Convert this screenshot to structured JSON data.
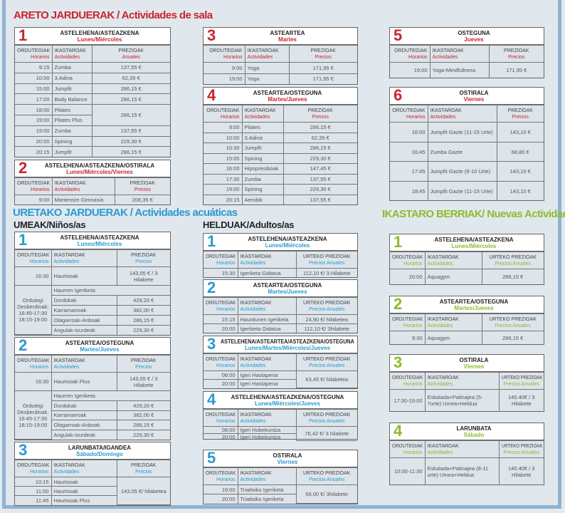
{
  "colors": {
    "red": "#c9252f",
    "blue": "#2b9ad0",
    "green": "#8dbb2d"
  },
  "sections": {
    "areto": {
      "title": "ARETO JARDUERAK / Actividades de sala"
    },
    "uretako": {
      "title": "URETAKO JARDUERAK / Actividades acuáticas",
      "umeak": "UMEAK/Niños/as",
      "helduak": "HELDUAK/Adultos/as"
    },
    "berriak": {
      "title": "IKASTARO BERRIAK/ Nuevas Actividades"
    }
  },
  "cards": [
    {
      "id": "a1",
      "theme": "red",
      "num": "1",
      "day_eu": "ASTELEHENA/ASTEAZKENA",
      "day_es": "Lunes/Miércoles",
      "headers": [
        [
          "ORDUTEGIAK",
          "Horarios"
        ],
        [
          "IKASTAROAK",
          "Actividades"
        ],
        [
          "PREZIOAK",
          "Anuales"
        ]
      ],
      "rows": [
        [
          "9:15",
          "Zumba",
          "137,55 €"
        ],
        [
          "10:00",
          "3.Adina",
          "62,35 €"
        ],
        [
          "15:00",
          "Jumpfit",
          "286,15 €"
        ],
        [
          "17:00",
          "Body Balance",
          "286,15 €"
        ],
        [
          "18:00",
          "Pilates",
          {
            "text": "286,15 €",
            "rowspan": 2
          }
        ],
        [
          "19:00",
          "Pilates Plus"
        ],
        [
          "19:00",
          "Zumba",
          "137,55 €"
        ],
        [
          "20:00",
          "Spining",
          "229,30 €"
        ],
        [
          "20:15",
          "Jumpfit",
          "286,15 €"
        ]
      ]
    },
    {
      "id": "a2",
      "theme": "red",
      "num": "2",
      "day_eu": "ASTELEHENA/ASTEAZKENA/OSTIRALA",
      "day_es": "Lunes/Miércoles/Viernes",
      "headers": [
        [
          "ORDUTEGIAK",
          "Horarios"
        ],
        [
          "IKASTAROAK",
          "Actividades"
        ],
        [
          "PREZIOAK",
          "Precios"
        ]
      ],
      "rows": [
        [
          "9:00",
          "Mantentze Gimnasia",
          "206,35 €"
        ]
      ]
    },
    {
      "id": "a3",
      "theme": "red",
      "num": "3",
      "day_eu": "ASTEARTEA",
      "day_es": "Martes",
      "headers": [
        [
          "ORDUTEGIAK",
          "Horarios"
        ],
        [
          "IKASTAROAK",
          "Actividades"
        ],
        [
          "PREZIOAK",
          "Precios"
        ]
      ],
      "rows": [
        [
          "9:00",
          "Yoga",
          "171,95 €"
        ],
        [
          "19:00",
          "Yoga",
          "171,95 €"
        ]
      ]
    },
    {
      "id": "a4",
      "theme": "red",
      "num": "4",
      "day_eu": "ASTEARTEA/OSTEGUNA",
      "day_es": "Martes/Jueves",
      "headers": [
        [
          "ORDUTEGIAK",
          "Horarios"
        ],
        [
          "IKASTAROAK",
          "Actividades"
        ],
        [
          "PREZIOAK",
          "Precios"
        ]
      ],
      "rows": [
        [
          "9:00",
          "Pilates",
          "286,15 €"
        ],
        [
          "10:00",
          "3.Adina",
          "62,35 €"
        ],
        [
          "10:30",
          "Jumpfit",
          "286,15 €"
        ],
        [
          "15:05",
          "Spining",
          "229,30 €"
        ],
        [
          "16:00",
          "Hipopresiboak",
          "147,45 €"
        ],
        [
          "17:30",
          "Zumba",
          "137,55 €"
        ],
        [
          "19:00",
          "Spining",
          "229,30 €"
        ],
        [
          "20:15",
          "Aerobik",
          "137,55 €"
        ]
      ]
    },
    {
      "id": "a5",
      "theme": "red",
      "num": "5",
      "day_eu": "OSTEGUNA",
      "day_es": "Jueves",
      "headers": [
        [
          "ORDUTEGIAK",
          "Horarios"
        ],
        [
          "IKASTAROAK",
          "Actividades"
        ],
        [
          "PREZIOAK",
          "Precios"
        ]
      ],
      "rows": [
        [
          "19:00",
          "Yoga-Mindfullness",
          "171,95 €"
        ]
      ]
    },
    {
      "id": "a6",
      "theme": "red",
      "num": "6",
      "day_eu": "OSTIRALA",
      "day_es": "Viernes",
      "headers": [
        [
          "ORDUTEGIAK",
          "Horarios"
        ],
        [
          "IKASTAROAK",
          "Actividades"
        ],
        [
          "PREZIOAK",
          "Precios"
        ]
      ],
      "rows": [
        [
          "16:00",
          "Jumpfit Gazte (11-15 Urte)",
          "143,10 €"
        ],
        [
          "16:45",
          "Zumba Gazte",
          "68,80 €"
        ],
        [
          "17:45",
          "Jumpfit Gazte (6-10 Urte)",
          "143,10 €"
        ],
        [
          "18:45",
          "Jumpfit Gazte (11-15 Urte)",
          "143,10 €"
        ]
      ]
    },
    {
      "id": "u1",
      "theme": "blue",
      "num": "1",
      "day_eu": "ASTELEHENA/ASTEAZKENA",
      "day_es": "Lunes/Miércoles",
      "headers": [
        [
          "ORDUTEGIAK",
          "Horarios"
        ],
        [
          "IKASTAROAK",
          "Actividades"
        ],
        [
          "PREZIOAK",
          "Precios"
        ]
      ],
      "rows": [
        [
          "16:30",
          "Haurtxoak",
          "143,05 € / 3 Hilabete"
        ],
        [
          {
            "text": "Ordutegi Desberdinak: 16:45-17:30 18:15-19:00",
            "rowspan": 5
          },
          {
            "text": "Haurren Igeriketa:",
            "colspan": 2
          }
        ],
        [
          "Dordokak",
          "429,20 €"
        ],
        [
          "Karramarroak",
          "382,00 €"
        ],
        [
          "Olagarroak-Anboak",
          "286,15 €"
        ],
        [
          "Angulak-Izurdeak",
          "229,30 €"
        ]
      ]
    },
    {
      "id": "u2",
      "theme": "blue",
      "num": "2",
      "day_eu": "ASTEARTEA/OSTEGUNA",
      "day_es": "Martes/Jueves",
      "headers": [
        [
          "ORDUTEGIAK",
          "Horarios"
        ],
        [
          "IKASTAROAK",
          "Actividades"
        ],
        [
          "PREZIOAK",
          "Precios"
        ]
      ],
      "rows": [
        [
          "16:30",
          "Haurtxoak Plus",
          "143,05 € / 3 Hilabete"
        ],
        [
          {
            "text": "Ordutegi Desberdinak: 16:45-17:30 18:15-19:00",
            "rowspan": 5
          },
          {
            "text": "Haurren Igeriketa:",
            "colspan": 2
          }
        ],
        [
          "Dordokak",
          "429,20 €"
        ],
        [
          "Karramarroak",
          "382,00 €"
        ],
        [
          "Olagarroak-Anboak",
          "286,15 €"
        ],
        [
          "Angulak-Izurdeak",
          "229,30 €"
        ]
      ]
    },
    {
      "id": "u3",
      "theme": "blue",
      "num": "3",
      "day_eu": "LARUNBATA/IGANDEA",
      "day_es": "Sábado/Domingo",
      "headers": [
        [
          "ORDUTEGIAK",
          "Horarios"
        ],
        [
          "IKASTAROAK",
          "Actividades"
        ],
        [
          "PREZIOAK",
          "Precios"
        ]
      ],
      "rows": [
        [
          "10:15",
          "Haurtxoak",
          {
            "text": "143,05 €/ hilabetea",
            "rowspan": 3
          }
        ],
        [
          "11:00",
          "Haurtxoak"
        ],
        [
          "11:45",
          "Haurtxoak Plus"
        ]
      ]
    },
    {
      "id": "h1",
      "theme": "blue",
      "num": "1",
      "day_eu": "ASTELEHENA/ASTEAZKENA",
      "day_es": "Lunes/Miércoles",
      "headers": [
        [
          "ORDUTEGIAK",
          "Horarios"
        ],
        [
          "IKASTAROAK",
          "Actividades"
        ],
        [
          "URTEKO PREZIOAK",
          "Precios Anuales"
        ]
      ],
      "rows": [
        [
          "15:30",
          "Igeriketa Gidatua",
          "112,10 €/ 3 Hilabete"
        ]
      ]
    },
    {
      "id": "h2",
      "theme": "blue",
      "num": "2",
      "day_eu": "ASTEARTEA/OSTEGUNA",
      "day_es": "Martes/Jueves",
      "headers": [
        [
          "ORDUTEGIAK",
          "Horarios"
        ],
        [
          "IKASTAROAK",
          "Actividades"
        ],
        [
          "URTEKO PREZIOAK",
          "Precios Anuales"
        ]
      ],
      "rows": [
        [
          "15:15",
          "Haurdunen Igeriketa",
          "24,90 €/ hilabetea"
        ],
        [
          "20:00",
          "Igeriketa Gidatua",
          "112,10 €/ 3hilabete"
        ]
      ]
    },
    {
      "id": "h3",
      "theme": "blue",
      "num": "3",
      "day_eu": "ASTELEHENA/ASTEARTEA/ASTEAZKENA/OSTEGUNA",
      "day_es": "Lunes/Martes/Miércoles/Jueves",
      "headers": [
        [
          "ORDUTEGIAK",
          "Horarios"
        ],
        [
          "IKASTAROAK",
          "Actividades"
        ],
        [
          "URTEKO PREZIOAK",
          "Precios Anuales"
        ]
      ],
      "rows": [
        [
          "08:00",
          "Igeri Hastapena",
          {
            "text": "63,45 €/ hilabetea",
            "rowspan": 2
          }
        ],
        [
          "20:00",
          "Igeri Hastapena"
        ]
      ]
    },
    {
      "id": "h4",
      "theme": "blue",
      "num": "4",
      "day_eu": "ASTELEHENA/ASTEAZKENA/OSTEGUNA",
      "day_es": "Lunes/Miércoles/Jueves",
      "headers": [
        [
          "ORDUTEGIAK",
          "Horarios"
        ],
        [
          "IKASTAROAK",
          "Actividades"
        ],
        [
          "URTEKO PREZIOAK",
          "Precios Anuales"
        ]
      ],
      "rows": [
        [
          "08:00",
          "Igeri Hobekuntza",
          {
            "text": "76,42 €/  3 hilabete",
            "rowspan": 2
          }
        ],
        [
          "20:00",
          "Igeri Hobekuntza"
        ]
      ]
    },
    {
      "id": "h5",
      "theme": "blue",
      "num": "5",
      "day_eu": "OSTIRALA",
      "day_es": "Viernes",
      "headers": [
        [
          "ORDUTEGIAK",
          "Horarios"
        ],
        [
          "IKASTAROAK",
          "Actividades"
        ],
        [
          "URTEKO PREZIOAK",
          "Precios Anuales"
        ]
      ],
      "rows": [
        [
          "19:00",
          "Triatloiko Igeriketa",
          {
            "text": "56,00 €/ 3hilabete",
            "rowspan": 2
          }
        ],
        [
          "20:00",
          "Triatloiko Igeriketa"
        ]
      ]
    },
    {
      "id": "n1",
      "theme": "green",
      "num": "1",
      "day_eu": "ASTELEHENA/ASTEAZKENA",
      "day_es": "Lunes/Miércoles",
      "headers": [
        [
          "ORDUTEGIAK",
          "Horarios"
        ],
        [
          "IKASTAROAK",
          "Actividades"
        ],
        [
          "URTEKO PREZIOAK",
          "Precios Anuales"
        ]
      ],
      "rows": [
        [
          "20:00",
          "Aquagym",
          "286,15 €"
        ]
      ]
    },
    {
      "id": "n2",
      "theme": "green",
      "num": "2",
      "day_eu": "ASTEARTEA/OSTEGUNA",
      "day_es": "Martes/Jueves",
      "headers": [
        [
          "ORDUTEGIAK",
          "Horarios"
        ],
        [
          "IKASTAROAK",
          "Actividades"
        ],
        [
          "URTEKO PREZIOAK",
          "Precios Anuales"
        ]
      ],
      "rows": [
        [
          "9:30",
          "Aquagym",
          "286,15 €"
        ]
      ]
    },
    {
      "id": "n3",
      "theme": "green",
      "num": "3",
      "day_eu": "OSTIRALA",
      "day_es": "Viernes",
      "headers": [
        [
          "ORDUTEGIAK",
          "Horarios"
        ],
        [
          "IKASTAROAK",
          "Actividades"
        ],
        [
          "URTEKO PREZIOAK",
          "Precios Anuales"
        ]
      ],
      "rows": [
        [
          "17:30-19:00",
          "Eskalada+Patinajea (5-7urte) Umea+Heldua",
          "140.40€ / 3 Hilabete"
        ]
      ]
    },
    {
      "id": "n4",
      "theme": "green",
      "num": "4",
      "day_eu": "LARUNBATA",
      "day_es": "Sábado",
      "headers": [
        [
          "ORDUTEGIAK",
          "Horarios"
        ],
        [
          "IKASTAROAK",
          "Actividades"
        ],
        [
          "URTEKO PREZIOAK",
          "Precios Anuales"
        ]
      ],
      "rows": [
        [
          "10:00-11:30",
          "Eskalada+Patinajea (8-11 urte) Umea+Heldua",
          "140.40€ / 3 Hilabete"
        ]
      ]
    }
  ]
}
